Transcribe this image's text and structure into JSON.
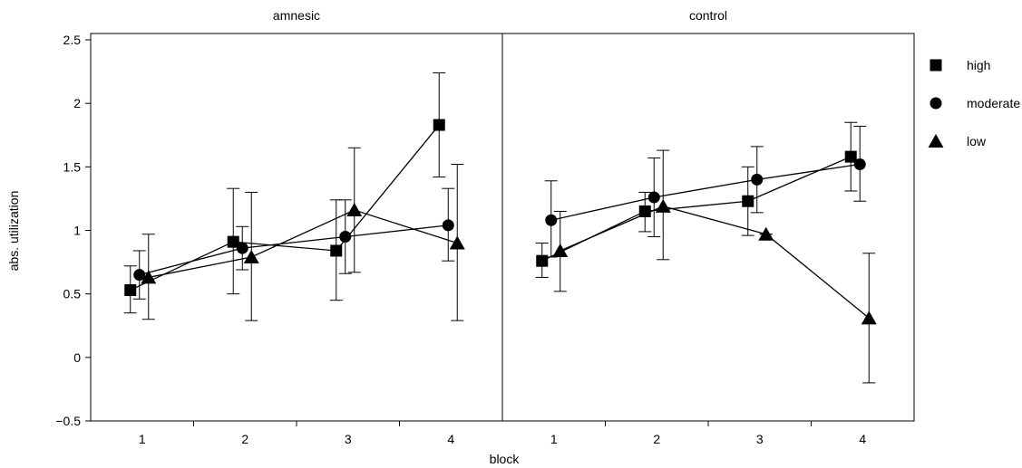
{
  "chart_data": {
    "type": "line",
    "xlabel": "block",
    "ylabel": "abs. utilization",
    "ylim": [
      -0.5,
      2.55
    ],
    "yticks": [
      -0.5,
      0,
      0.5,
      1,
      1.5,
      2,
      2.5
    ],
    "ytick_labels": [
      "−0.5",
      "0",
      "0.5",
      "1",
      "1.5",
      "2",
      "2.5"
    ],
    "categories": [
      "1",
      "2",
      "3",
      "4"
    ],
    "legend_position": "right",
    "grid": false,
    "panels": [
      {
        "title": "amnesic",
        "series": [
          {
            "name": "high",
            "marker": "square",
            "values": [
              0.53,
              0.91,
              0.84,
              1.83
            ],
            "err_low": [
              0.35,
              0.5,
              0.45,
              1.42
            ],
            "err_high": [
              0.72,
              1.33,
              1.24,
              2.24
            ]
          },
          {
            "name": "moderate",
            "marker": "circle",
            "values": [
              0.65,
              0.86,
              0.95,
              1.04
            ],
            "err_low": [
              0.46,
              0.69,
              0.66,
              0.76
            ],
            "err_high": [
              0.84,
              1.03,
              1.24,
              1.33
            ]
          },
          {
            "name": "low",
            "marker": "triangle",
            "values": [
              0.63,
              0.79,
              1.16,
              0.9
            ],
            "err_low": [
              0.3,
              0.29,
              0.67,
              0.29
            ],
            "err_high": [
              0.97,
              1.3,
              1.65,
              1.52
            ]
          }
        ]
      },
      {
        "title": "control",
        "series": [
          {
            "name": "high",
            "marker": "square",
            "values": [
              0.76,
              1.15,
              1.23,
              1.58
            ],
            "err_low": [
              0.63,
              0.99,
              0.96,
              1.31
            ],
            "err_high": [
              0.9,
              1.3,
              1.5,
              1.85
            ]
          },
          {
            "name": "moderate",
            "marker": "circle",
            "values": [
              1.08,
              1.26,
              1.4,
              1.52
            ],
            "err_low": [
              0.79,
              0.95,
              1.14,
              1.23
            ],
            "err_high": [
              1.39,
              1.57,
              1.66,
              1.82
            ]
          },
          {
            "name": "low",
            "marker": "triangle",
            "values": [
              0.84,
              1.19,
              0.97,
              0.31
            ],
            "err_low": [
              0.52,
              0.77,
              0.97,
              -0.2
            ],
            "err_high": [
              1.15,
              1.63,
              0.97,
              0.82
            ]
          }
        ]
      }
    ],
    "legend": [
      {
        "label": "high",
        "marker": "square"
      },
      {
        "label": "moderate",
        "marker": "circle"
      },
      {
        "label": "low",
        "marker": "triangle"
      }
    ]
  }
}
